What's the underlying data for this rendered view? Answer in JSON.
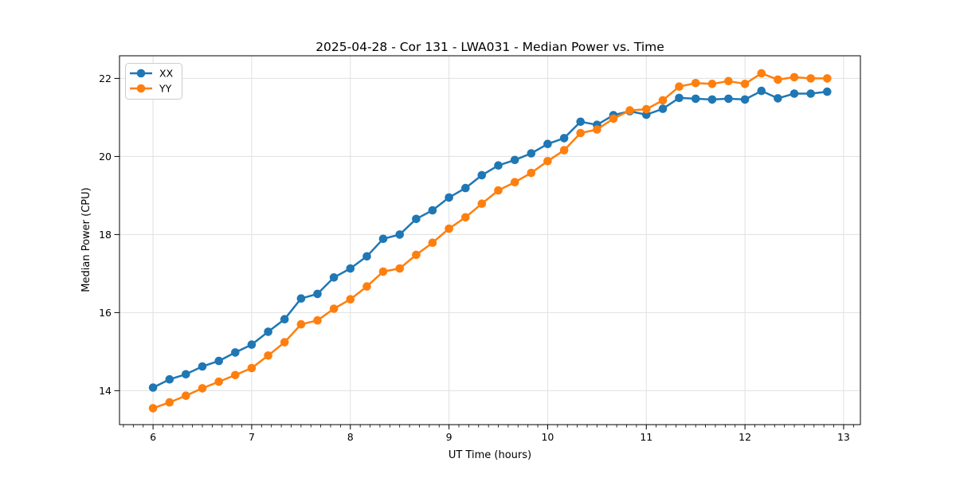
{
  "figure": {
    "background": "#ffffff"
  },
  "chart_data": {
    "type": "line",
    "title": "2025-04-28 - Cor 131 - LWA031 - Median Power vs. Time",
    "xlabel": "UT Time (hours)",
    "ylabel": "Median Power (CPU)",
    "xlim": [
      5.66,
      13.17
    ],
    "ylim": [
      13.13,
      22.58
    ],
    "x_major_ticks": [
      6,
      7,
      8,
      9,
      10,
      11,
      12,
      13
    ],
    "x_minor_tick_step": 0.1,
    "y_major_ticks": [
      14,
      16,
      18,
      20,
      22
    ],
    "grid": true,
    "grid_color": "#e0e0e0",
    "spine_color": "#000000",
    "legend_position": "upper left",
    "x": [
      6.0,
      6.167,
      6.333,
      6.5,
      6.667,
      6.833,
      7.0,
      7.167,
      7.333,
      7.5,
      7.667,
      7.833,
      8.0,
      8.167,
      8.333,
      8.5,
      8.667,
      8.833,
      9.0,
      9.167,
      9.333,
      9.5,
      9.667,
      9.833,
      10.0,
      10.167,
      10.333,
      10.5,
      10.667,
      10.833,
      11.0,
      11.167,
      11.333,
      11.5,
      11.667,
      11.833,
      12.0,
      12.167,
      12.333,
      12.5,
      12.667,
      12.833
    ],
    "series": [
      {
        "name": "XX",
        "color": "#1f77b4",
        "values": [
          14.08,
          14.29,
          14.42,
          14.62,
          14.76,
          14.98,
          15.18,
          15.51,
          15.83,
          16.36,
          16.48,
          16.9,
          17.13,
          17.44,
          17.89,
          18.0,
          18.4,
          18.62,
          18.95,
          19.19,
          19.52,
          19.77,
          19.91,
          20.08,
          20.32,
          20.47,
          20.89,
          20.81,
          21.06,
          21.16,
          21.07,
          21.22,
          21.5,
          21.48,
          21.46,
          21.48,
          21.46,
          21.68,
          21.49,
          21.61,
          21.61,
          21.66
        ]
      },
      {
        "name": "YY",
        "color": "#ff7f0e",
        "values": [
          13.55,
          13.7,
          13.87,
          14.06,
          14.23,
          14.4,
          14.58,
          14.9,
          15.24,
          15.7,
          15.8,
          16.1,
          16.34,
          16.67,
          17.05,
          17.13,
          17.48,
          17.79,
          18.15,
          18.44,
          18.79,
          19.13,
          19.34,
          19.58,
          19.88,
          20.16,
          20.6,
          20.69,
          20.97,
          21.18,
          21.21,
          21.44,
          21.79,
          21.88,
          21.86,
          21.93,
          21.86,
          22.13,
          21.97,
          22.03,
          22.0,
          22.0
        ]
      }
    ]
  }
}
